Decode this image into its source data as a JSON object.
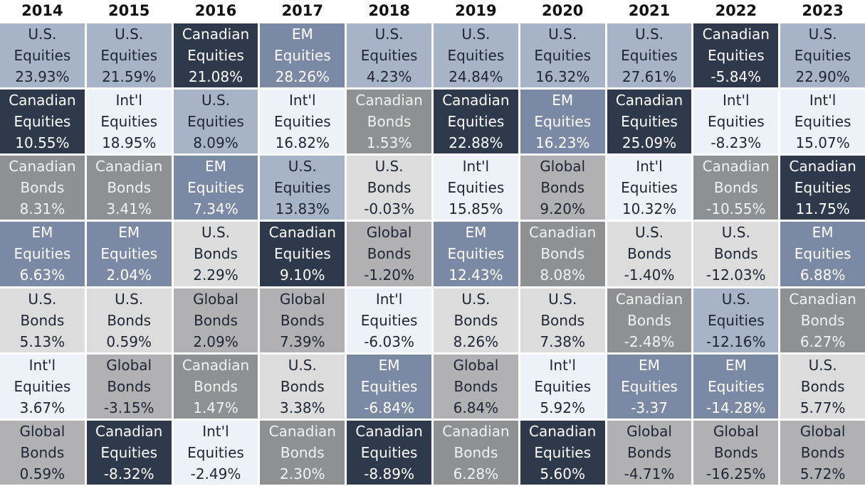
{
  "table": {
    "colors": {
      "U.S. Equities": {
        "bg": "#a7b4c8",
        "fg": "#1e2533"
      },
      "Canadian Equities": {
        "bg": "#2e394c",
        "fg": "#ffffff"
      },
      "EM Equities": {
        "bg": "#7b89a5",
        "fg": "#ffffff"
      },
      "Int'l Equities": {
        "bg": "#edf1f8",
        "fg": "#1e2533"
      },
      "Canadian Bonds": {
        "bg": "#8f9094",
        "fg": "#f2f2f2"
      },
      "U.S. Bonds": {
        "bg": "#dcdcdd",
        "fg": "#1e2533"
      },
      "Global Bonds": {
        "bg": "#b1b1b3",
        "fg": "#1e2533"
      }
    },
    "columns": [
      {
        "year": "2014",
        "cells": [
          {
            "label": "U.S. Equities",
            "value": "23.93%"
          },
          {
            "label": "Canadian Equities",
            "value": "10.55%"
          },
          {
            "label": "Canadian Bonds",
            "value": "8.31%"
          },
          {
            "label": "EM Equities",
            "value": "6.63%"
          },
          {
            "label": "U.S. Bonds",
            "value": "5.13%"
          },
          {
            "label": "Int'l Equities",
            "value": "3.67%"
          },
          {
            "label": "Global Bonds",
            "value": "0.59%"
          }
        ]
      },
      {
        "year": "2015",
        "cells": [
          {
            "label": "U.S. Equities",
            "value": "21.59%"
          },
          {
            "label": "Int'l Equities",
            "value": "18.95%"
          },
          {
            "label": "Canadian Bonds",
            "value": "3.41%"
          },
          {
            "label": "EM Equities",
            "value": "2.04%"
          },
          {
            "label": "U.S. Bonds",
            "value": "0.59%"
          },
          {
            "label": "Global Bonds",
            "value": "-3.15%"
          },
          {
            "label": "Canadian Equities",
            "value": "-8.32%"
          }
        ]
      },
      {
        "year": "2016",
        "cells": [
          {
            "label": "Canadian Equities",
            "value": "21.08%"
          },
          {
            "label": "U.S. Equities",
            "value": "8.09%"
          },
          {
            "label": "EM Equities",
            "value": "7.34%"
          },
          {
            "label": "U.S. Bonds",
            "value": "2.29%"
          },
          {
            "label": "Global Bonds",
            "value": "2.09%"
          },
          {
            "label": "Canadian Bonds",
            "value": "1.47%"
          },
          {
            "label": "Int'l Equities",
            "value": "-2.49%"
          }
        ]
      },
      {
        "year": "2017",
        "cells": [
          {
            "label": "EM Equities",
            "value": "28.26%"
          },
          {
            "label": "Int'l Equities",
            "value": "16.82%"
          },
          {
            "label": "U.S. Equities",
            "value": "13.83%"
          },
          {
            "label": "Canadian Equities",
            "value": "9.10%"
          },
          {
            "label": "Global Bonds",
            "value": "7.39%"
          },
          {
            "label": "U.S. Bonds",
            "value": "3.38%"
          },
          {
            "label": "Canadian Bonds",
            "value": "2.30%"
          }
        ]
      },
      {
        "year": "2018",
        "cells": [
          {
            "label": "U.S. Equities",
            "value": "4.23%"
          },
          {
            "label": "Canadian Bonds",
            "value": "1.53%"
          },
          {
            "label": "U.S. Bonds",
            "value": "-0.03%"
          },
          {
            "label": "Global Bonds",
            "value": "-1.20%"
          },
          {
            "label": "Int'l Equities",
            "value": "-6.03%"
          },
          {
            "label": "EM Equities",
            "value": "-6.84%"
          },
          {
            "label": "Canadian Equities",
            "value": "-8.89%"
          }
        ]
      },
      {
        "year": "2019",
        "cells": [
          {
            "label": "U.S. Equities",
            "value": "24.84%"
          },
          {
            "label": "Canadian Equities",
            "value": "22.88%"
          },
          {
            "label": "Int'l Equities",
            "value": "15.85%"
          },
          {
            "label": "EM Equities",
            "value": "12.43%"
          },
          {
            "label": "U.S. Bonds",
            "value": "8.26%"
          },
          {
            "label": "Global Bonds",
            "value": "6.84%"
          },
          {
            "label": "Canadian Bonds",
            "value": "6.28%"
          }
        ]
      },
      {
        "year": "2020",
        "cells": [
          {
            "label": "U.S. Equities",
            "value": "16.32%"
          },
          {
            "label": "EM Equities",
            "value": "16.23%"
          },
          {
            "label": "Global Bonds",
            "value": "9.20%"
          },
          {
            "label": "Canadian Bonds",
            "value": "8.08%"
          },
          {
            "label": "U.S. Bonds",
            "value": "7.38%"
          },
          {
            "label": "Int'l Equities",
            "value": "5.92%"
          },
          {
            "label": "Canadian Equities",
            "value": "5.60%"
          }
        ]
      },
      {
        "year": "2021",
        "cells": [
          {
            "label": "U.S. Equities",
            "value": "27.61%"
          },
          {
            "label": "Canadian Equities",
            "value": "25.09%"
          },
          {
            "label": "Int'l Equities",
            "value": "10.32%"
          },
          {
            "label": "U.S. Bonds",
            "value": "-1.40%"
          },
          {
            "label": "Canadian Bonds",
            "value": "-2.48%"
          },
          {
            "label": "EM Equities",
            "value": "-3.37"
          },
          {
            "label": "Global Bonds",
            "value": "-4.71%"
          }
        ]
      },
      {
        "year": "2022",
        "cells": [
          {
            "label": "Canadian Equities",
            "value": "-5.84%"
          },
          {
            "label": "Int'l Equities",
            "value": "-8.23%"
          },
          {
            "label": "Canadian Bonds",
            "value": "-10.55%"
          },
          {
            "label": "U.S. Bonds",
            "value": "-12.03%"
          },
          {
            "label": "U.S. Equities",
            "value": "-12.16%"
          },
          {
            "label": "EM Equities",
            "value": "-14.28%"
          },
          {
            "label": "Global Bonds",
            "value": "-16.25%"
          }
        ]
      },
      {
        "year": "2023",
        "cells": [
          {
            "label": "U.S. Equities",
            "value": "22.90%"
          },
          {
            "label": "Int'l Equities",
            "value": "15.07%"
          },
          {
            "label": "Canadian Equities",
            "value": "11.75%"
          },
          {
            "label": "EM Equities",
            "value": "6.88%"
          },
          {
            "label": "Canadian Bonds",
            "value": "6.27%"
          },
          {
            "label": "U.S. Bonds",
            "value": "5.77%"
          },
          {
            "label": "Global Bonds",
            "value": "5.72%"
          }
        ]
      }
    ]
  }
}
